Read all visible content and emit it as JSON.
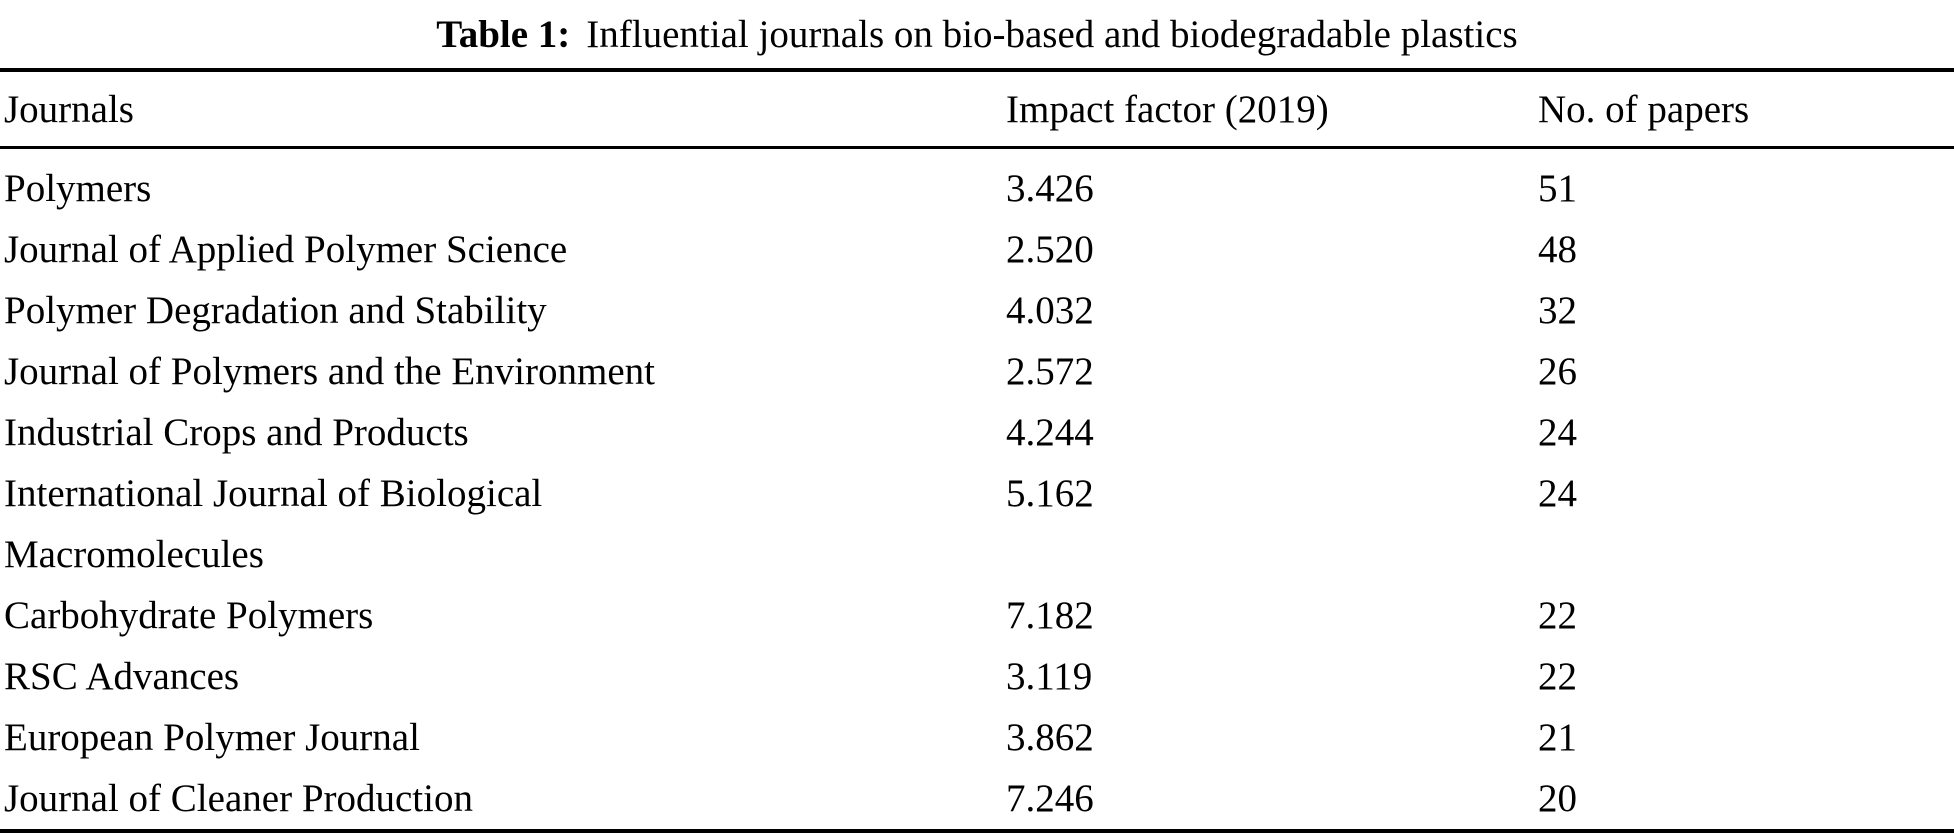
{
  "title": {
    "label": "Table 1:",
    "text": "Influential journals on bio-based and biodegradable plastics"
  },
  "columns": [
    {
      "key": "journal",
      "label": "Journals"
    },
    {
      "key": "impact_factor",
      "label": "Impact factor (2019)"
    },
    {
      "key": "papers",
      "label": "No. of papers"
    }
  ],
  "rows": [
    {
      "journal": "Polymers",
      "impact_factor": "3.426",
      "papers": "51"
    },
    {
      "journal": "Journal of Applied Polymer Science",
      "impact_factor": "2.520",
      "papers": "48"
    },
    {
      "journal": "Polymer Degradation and Stability",
      "impact_factor": "4.032",
      "papers": "32"
    },
    {
      "journal": "Journal of Polymers and the Environment",
      "impact_factor": "2.572",
      "papers": "26"
    },
    {
      "journal": "Industrial Crops and Products",
      "impact_factor": "4.244",
      "papers": "24"
    },
    {
      "journal": "International Journal of Biological\nMacromolecules",
      "impact_factor": "5.162",
      "papers": "24"
    },
    {
      "journal": "Carbohydrate Polymers",
      "impact_factor": "7.182",
      "papers": "22"
    },
    {
      "journal": "RSC Advances",
      "impact_factor": "3.119",
      "papers": "22"
    },
    {
      "journal": "European Polymer Journal",
      "impact_factor": "3.862",
      "papers": "21"
    },
    {
      "journal": "Journal of Cleaner Production",
      "impact_factor": "7.246",
      "papers": "20"
    }
  ],
  "colors": {
    "text": "#000000",
    "background": "#ffffff",
    "rule": "#000000"
  },
  "chart_data": {
    "type": "table",
    "title": "Table 1: Influential journals on bio-based and biodegradable plastics",
    "columns": [
      "Journals",
      "Impact factor (2019)",
      "No. of papers"
    ],
    "rows": [
      [
        "Polymers",
        3.426,
        51
      ],
      [
        "Journal of Applied Polymer Science",
        2.52,
        48
      ],
      [
        "Polymer Degradation and Stability",
        4.032,
        32
      ],
      [
        "Journal of Polymers and the Environment",
        2.572,
        26
      ],
      [
        "Industrial Crops and Products",
        4.244,
        24
      ],
      [
        "International Journal of Biological Macromolecules",
        5.162,
        24
      ],
      [
        "Carbohydrate Polymers",
        7.182,
        22
      ],
      [
        "RSC Advances",
        3.119,
        22
      ],
      [
        "European Polymer Journal",
        3.862,
        21
      ],
      [
        "Journal of Cleaner Production",
        7.246,
        20
      ]
    ]
  }
}
